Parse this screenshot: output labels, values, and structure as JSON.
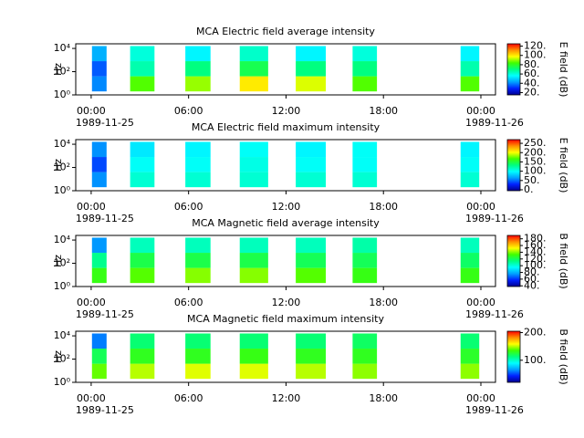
{
  "chart_data": [
    {
      "type": "heatmap",
      "title": "MCA  Electric field average intensity",
      "ylabel": "Hz",
      "colorbar_label": "E field (dB)",
      "xlim": [
        -0.95,
        24.9
      ],
      "xticks": [
        {
          "value": 0,
          "label": "00:00"
        },
        {
          "value": 6,
          "label": "06:00"
        },
        {
          "value": 12,
          "label": "12:00"
        },
        {
          "value": 18,
          "label": "18:00"
        },
        {
          "value": 24,
          "label": "00:00"
        }
      ],
      "x_dates": [
        {
          "value": 0,
          "label": "1989-11-25"
        },
        {
          "value": 24,
          "label": "1989-11-26"
        }
      ],
      "ylim": [
        1,
        25000
      ],
      "log_y": true,
      "yticks": [
        {
          "value": 1,
          "label": "10⁰"
        },
        {
          "value": 100,
          "label": "10²"
        },
        {
          "value": 10000,
          "label": "10⁴"
        }
      ],
      "frequency_range": [
        2,
        16000
      ],
      "clim": [
        15,
        125
      ],
      "cticks": [
        {
          "value": 20,
          "label": "20."
        },
        {
          "value": 40,
          "label": "40."
        },
        {
          "value": 60,
          "label": "60."
        },
        {
          "value": 80,
          "label": "80."
        },
        {
          "value": 100,
          "label": "100."
        },
        {
          "value": 120,
          "label": "120."
        }
      ],
      "colormap": [
        "#00008f",
        "#0020ff",
        "#00a0ff",
        "#00ffff",
        "#00ff80",
        "#40ff00",
        "#ffff00",
        "#ff9000",
        "#ff0000"
      ],
      "blocks": [
        {
          "start": 0.05,
          "end": 0.95,
          "values": [
            40,
            35,
            45
          ]
        },
        {
          "start": 2.4,
          "end": 3.9,
          "values": [
            85,
            65,
            60
          ]
        },
        {
          "start": 5.8,
          "end": 7.35,
          "values": [
            90,
            70,
            55
          ]
        },
        {
          "start": 9.15,
          "end": 10.9,
          "values": [
            100,
            75,
            62
          ]
        },
        {
          "start": 12.6,
          "end": 14.45,
          "values": [
            95,
            70,
            55
          ]
        },
        {
          "start": 16.1,
          "end": 17.6,
          "values": [
            85,
            70,
            60
          ]
        },
        {
          "start": 22.75,
          "end": 23.9,
          "values": [
            85,
            65,
            55
          ]
        }
      ]
    },
    {
      "type": "heatmap",
      "title": "MCA  Electric field maximum intensity",
      "ylabel": "Hz",
      "colorbar_label": "E field (dB)",
      "xlim": [
        -0.95,
        24.9
      ],
      "xticks": [
        {
          "value": 0,
          "label": "00:00"
        },
        {
          "value": 6,
          "label": "06:00"
        },
        {
          "value": 12,
          "label": "12:00"
        },
        {
          "value": 18,
          "label": "18:00"
        },
        {
          "value": 24,
          "label": "00:00"
        }
      ],
      "x_dates": [
        {
          "value": 0,
          "label": "1989-11-25"
        },
        {
          "value": 24,
          "label": "1989-11-26"
        }
      ],
      "ylim": [
        1,
        25000
      ],
      "log_y": true,
      "yticks": [
        {
          "value": 1,
          "label": "10⁰"
        },
        {
          "value": 100,
          "label": "10²"
        },
        {
          "value": 10000,
          "label": "10⁴"
        }
      ],
      "frequency_range": [
        2,
        16000
      ],
      "clim": [
        -5,
        270
      ],
      "cticks": [
        {
          "value": 0,
          "label": "0."
        },
        {
          "value": 50,
          "label": "50."
        },
        {
          "value": 100,
          "label": "100."
        },
        {
          "value": 150,
          "label": "150."
        },
        {
          "value": 200,
          "label": "200."
        },
        {
          "value": 250,
          "label": "250."
        }
      ],
      "colormap": [
        "#00008f",
        "#0020ff",
        "#00a0ff",
        "#00ffff",
        "#00ff80",
        "#40ff00",
        "#ffff00",
        "#ff9000",
        "#ff0000"
      ],
      "blocks": [
        {
          "start": 0.05,
          "end": 0.95,
          "values": [
            60,
            40,
            60
          ]
        },
        {
          "start": 2.4,
          "end": 3.9,
          "values": [
            110,
            100,
            90
          ]
        },
        {
          "start": 5.8,
          "end": 7.35,
          "values": [
            110,
            100,
            95
          ]
        },
        {
          "start": 9.15,
          "end": 10.9,
          "values": [
            110,
            105,
            100
          ]
        },
        {
          "start": 12.6,
          "end": 14.45,
          "values": [
            110,
            100,
            95
          ]
        },
        {
          "start": 16.1,
          "end": 17.6,
          "values": [
            110,
            100,
            100
          ]
        },
        {
          "start": 22.75,
          "end": 23.9,
          "values": [
            110,
            100,
            95
          ]
        }
      ]
    },
    {
      "type": "heatmap",
      "title": "MCA  Magnetic field average intensity",
      "ylabel": "Hz",
      "colorbar_label": "B field (dB)",
      "xlim": [
        -0.95,
        24.9
      ],
      "xticks": [
        {
          "value": 0,
          "label": "00:00"
        },
        {
          "value": 6,
          "label": "06:00"
        },
        {
          "value": 12,
          "label": "12:00"
        },
        {
          "value": 18,
          "label": "18:00"
        },
        {
          "value": 24,
          "label": "00:00"
        }
      ],
      "x_dates": [
        {
          "value": 0,
          "label": "1989-11-25"
        },
        {
          "value": 24,
          "label": "1989-11-26"
        }
      ],
      "ylim": [
        1,
        25000
      ],
      "log_y": true,
      "yticks": [
        {
          "value": 1,
          "label": "10⁰"
        },
        {
          "value": 100,
          "label": "10²"
        },
        {
          "value": 10000,
          "label": "10⁴"
        }
      ],
      "frequency_range": [
        2,
        16000
      ],
      "clim": [
        38,
        190
      ],
      "cticks": [
        {
          "value": 40,
          "label": "40."
        },
        {
          "value": 60,
          "label": "60."
        },
        {
          "value": 80,
          "label": "80."
        },
        {
          "value": 100,
          "label": "100."
        },
        {
          "value": 120,
          "label": "120."
        },
        {
          "value": 140,
          "label": "140."
        },
        {
          "value": 160,
          "label": "160."
        },
        {
          "value": 180,
          "label": "180."
        }
      ],
      "colormap": [
        "#00008f",
        "#0020ff",
        "#00a0ff",
        "#00ffff",
        "#00ff80",
        "#40ff00",
        "#ffff00",
        "#ff9000",
        "#ff0000"
      ],
      "blocks": [
        {
          "start": 0.05,
          "end": 0.95,
          "values": [
            130,
            112,
            75
          ]
        },
        {
          "start": 2.4,
          "end": 3.9,
          "values": [
            135,
            122,
            105
          ]
        },
        {
          "start": 5.8,
          "end": 7.35,
          "values": [
            140,
            122,
            105
          ]
        },
        {
          "start": 9.15,
          "end": 10.9,
          "values": [
            140,
            122,
            105
          ]
        },
        {
          "start": 12.6,
          "end": 14.45,
          "values": [
            135,
            120,
            105
          ]
        },
        {
          "start": 16.1,
          "end": 17.6,
          "values": [
            130,
            120,
            108
          ]
        },
        {
          "start": 22.75,
          "end": 23.9,
          "values": [
            130,
            118,
            105
          ]
        }
      ]
    },
    {
      "type": "heatmap",
      "title": "MCA  Magnetic field maximum intensity",
      "ylabel": "Hz",
      "colorbar_label": "B field (dB)",
      "xlim": [
        -0.95,
        24.9
      ],
      "xticks": [
        {
          "value": 0,
          "label": "00:00"
        },
        {
          "value": 6,
          "label": "06:00"
        },
        {
          "value": 12,
          "label": "12:00"
        },
        {
          "value": 18,
          "label": "18:00"
        },
        {
          "value": 24,
          "label": "00:00"
        }
      ],
      "x_dates": [
        {
          "value": 0,
          "label": "1989-11-25"
        },
        {
          "value": 24,
          "label": "1989-11-26"
        }
      ],
      "ylim": [
        1,
        25000
      ],
      "log_y": true,
      "yticks": [
        {
          "value": 1,
          "label": "10⁰"
        },
        {
          "value": 100,
          "label": "10²"
        },
        {
          "value": 10000,
          "label": "10⁴"
        }
      ],
      "frequency_range": [
        2,
        16000
      ],
      "clim": [
        20,
        205
      ],
      "cticks": [
        {
          "value": 100,
          "label": "100."
        },
        {
          "value": 200,
          "label": "200."
        }
      ],
      "colormap": [
        "#00008f",
        "#0020ff",
        "#00a0ff",
        "#00ffff",
        "#00ff80",
        "#40ff00",
        "#ffff00",
        "#ff9000",
        "#ff0000"
      ],
      "blocks": [
        {
          "start": 0.05,
          "end": 0.95,
          "values": [
            140,
            120,
            60
          ]
        },
        {
          "start": 2.4,
          "end": 3.9,
          "values": [
            150,
            130,
            115
          ]
        },
        {
          "start": 5.8,
          "end": 7.35,
          "values": [
            155,
            130,
            115
          ]
        },
        {
          "start": 9.15,
          "end": 10.9,
          "values": [
            155,
            132,
            115
          ]
        },
        {
          "start": 12.6,
          "end": 14.45,
          "values": [
            150,
            130,
            115
          ]
        },
        {
          "start": 16.1,
          "end": 17.6,
          "values": [
            145,
            130,
            118
          ]
        },
        {
          "start": 22.75,
          "end": 23.9,
          "values": [
            145,
            128,
            115
          ]
        }
      ]
    }
  ]
}
